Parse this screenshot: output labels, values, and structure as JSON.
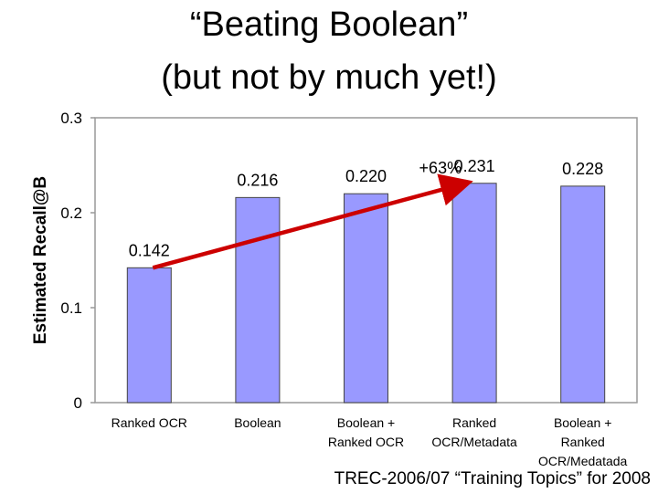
{
  "slide": {
    "title_line1": "“Beating Boolean”",
    "title_line2": "(but not by much yet!)",
    "footnote": "TREC-2006/07 “Training Topics” for 2008"
  },
  "chart_data": {
    "type": "bar",
    "categories": [
      [
        "Ranked OCR"
      ],
      [
        "Boolean"
      ],
      [
        "Boolean +",
        "Ranked OCR"
      ],
      [
        "Ranked",
        "OCR/Metadata"
      ],
      [
        "Boolean +",
        "Ranked",
        "OCR/Medatada"
      ]
    ],
    "values": [
      0.142,
      0.216,
      0.22,
      0.231,
      0.228
    ],
    "value_labels": [
      "0.142",
      "0.216",
      "0.220",
      "0.231",
      "0.228"
    ],
    "ylabel": "Estimated Recall@B",
    "ylim": [
      0,
      0.3
    ],
    "yticks": [
      0,
      0.1,
      0.2,
      0.3
    ],
    "ytick_labels": [
      "0",
      "0.1",
      "0.2",
      "0.3"
    ],
    "bar_color": "#9999ff",
    "grid": false,
    "annotation": {
      "text": "+63%",
      "from_category": 0,
      "to_category": 3,
      "color": "#cc0000"
    }
  }
}
